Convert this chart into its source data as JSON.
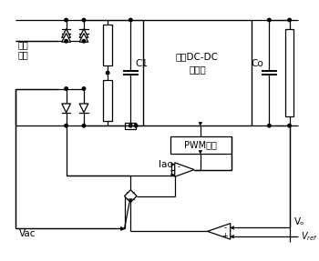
{
  "bg_color": "#ffffff",
  "line_color": "#000000",
  "fig_width": 3.5,
  "fig_height": 2.87,
  "dpi": 100,
  "ac_line1": "交流",
  "ac_line2": "输入",
  "C1": "C1",
  "Co": "Co",
  "dc_line1": "隔离DC-DC",
  "dc_line2": "转换器",
  "pwm_label": "PWM模块",
  "Iac": "Iac",
  "Vac": "Vac",
  "Vo": "Vₒ",
  "Vref": "Vᵣₑₒ"
}
